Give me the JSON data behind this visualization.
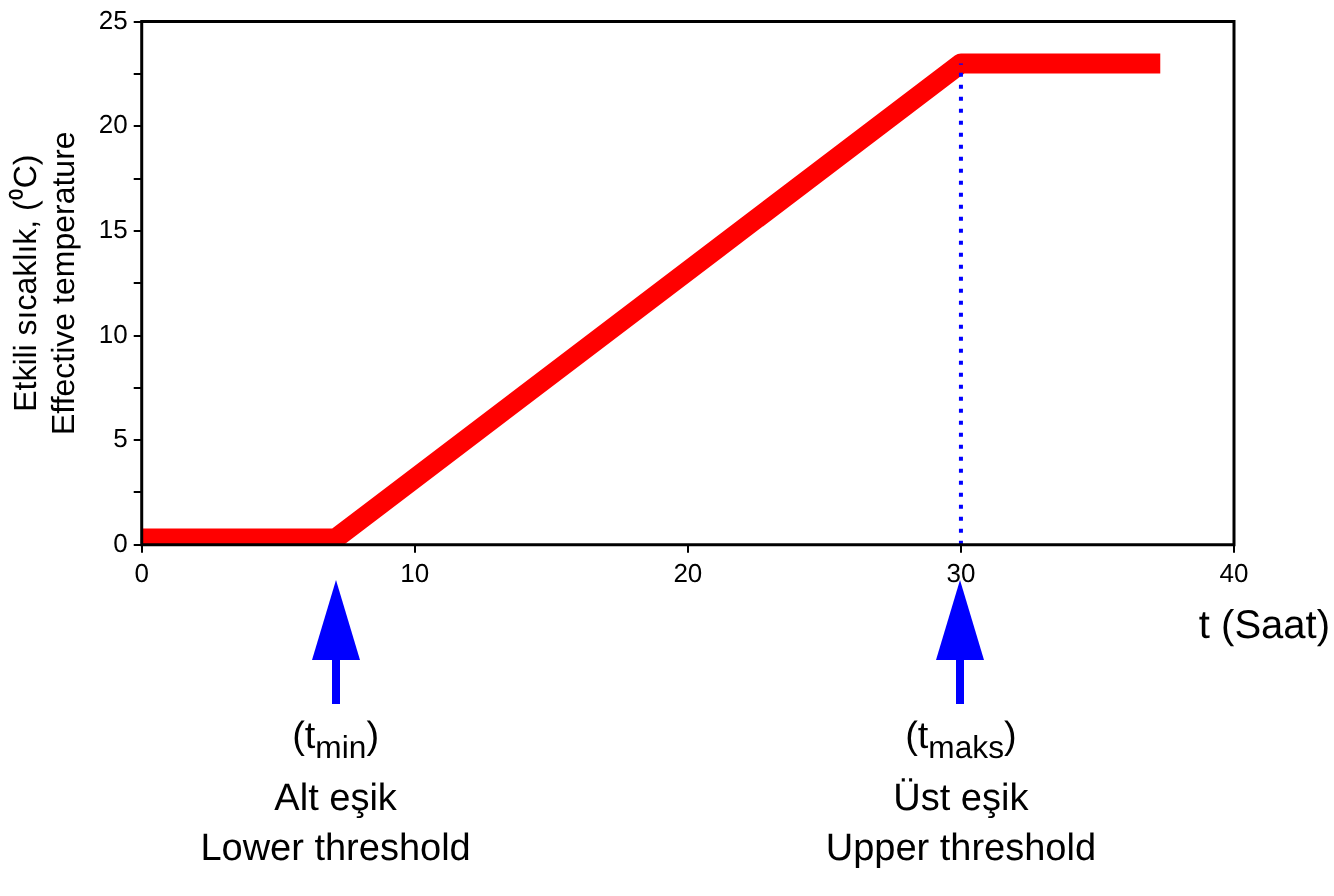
{
  "chart_data": {
    "type": "line",
    "xlabel": "t (Saat)",
    "ylabel": "Etkili sıcaklık, (⁰C)\nEffective temperature",
    "series": [
      {
        "color": "#ff0000",
        "x": [
          0,
          7.1,
          30,
          37.3
        ],
        "values": [
          0.3,
          0.3,
          23,
          23
        ]
      }
    ],
    "xlim": [
      0,
      40
    ],
    "xticks": [
      0,
      10,
      20,
      30,
      40
    ],
    "ylim": [
      0,
      25
    ],
    "yticks": [
      0,
      {
        "value": 2.5,
        "label": null
      },
      5,
      {
        "value": 7.5,
        "label": null
      },
      10,
      {
        "value": 12.5,
        "label": null
      },
      15,
      {
        "value": 17.5,
        "label": null
      },
      20,
      {
        "value": 22.5,
        "label": null
      },
      25
    ],
    "ref_lines": [
      {
        "axis": "x",
        "value": 30,
        "label": null,
        "color": "#0000ff",
        "line_style": "dotted"
      }
    ],
    "annotations": [
      "(t$_{min}$)\nAlt eşik\nLower threshold",
      "(t$_{maks}$)\nÜst eşik\nUpper threshold"
    ],
    "grid": false,
    "legend": false,
    "marker": "none",
    "line_style": "solid"
  }
}
